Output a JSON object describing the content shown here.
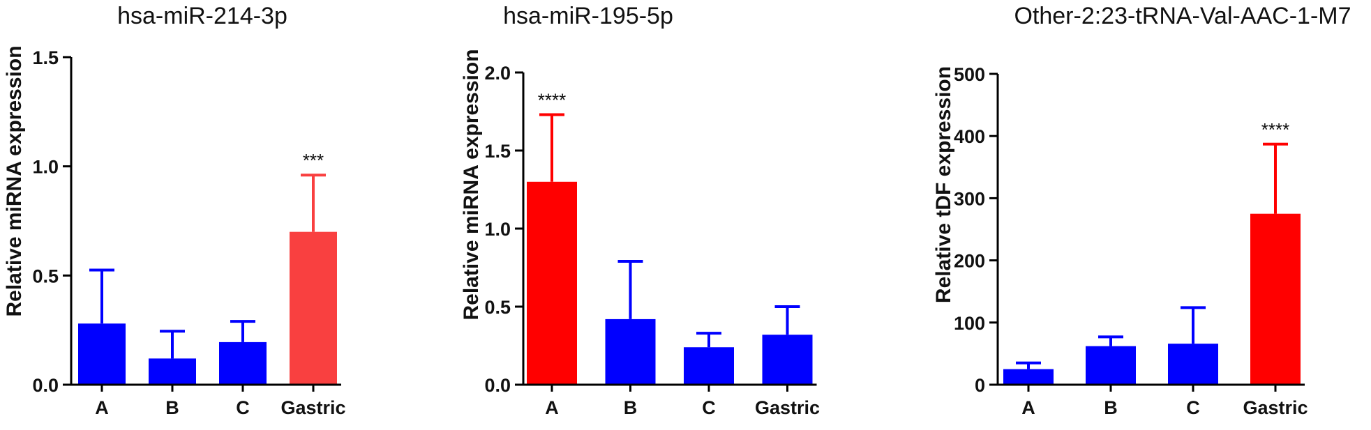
{
  "chart_data": [
    {
      "type": "bar",
      "title": "hsa-miR-214-3p",
      "ylabel": "Relative miRNA expression",
      "xlabel": "",
      "categories": [
        "A",
        "B",
        "C",
        "Gastric"
      ],
      "values": [
        0.28,
        0.12,
        0.195,
        0.7
      ],
      "errors": [
        0.245,
        0.125,
        0.095,
        0.26
      ],
      "colors": [
        "#0000ff",
        "#0000ff",
        "#0000ff",
        "#f94040"
      ],
      "significance": [
        "",
        "",
        "",
        "***"
      ],
      "ylim": [
        0,
        1.5
      ],
      "yticks": [
        "0.0",
        "0.5",
        "1.0",
        "1.5"
      ],
      "ytick_values": [
        0,
        0.5,
        1.0,
        1.5
      ]
    },
    {
      "type": "bar",
      "title": "hsa-miR-195-5p",
      "ylabel": "Relative miRNA expression",
      "xlabel": "",
      "categories": [
        "A",
        "B",
        "C",
        "Gastric"
      ],
      "values": [
        1.3,
        0.42,
        0.24,
        0.32
      ],
      "errors": [
        0.43,
        0.37,
        0.09,
        0.18
      ],
      "colors": [
        "#ff0000",
        "#0000ff",
        "#0000ff",
        "#0000ff"
      ],
      "significance": [
        "****",
        "",
        "",
        ""
      ],
      "ylim": [
        0,
        2.0
      ],
      "yticks": [
        "0.0",
        "0.5",
        "1.0",
        "1.5",
        "2.0"
      ],
      "ytick_values": [
        0,
        0.5,
        1.0,
        1.5,
        2.0
      ]
    },
    {
      "type": "bar",
      "title": "Other-2:23-tRNA-Val-AAC-1-M7",
      "ylabel": "Relative tDF expression",
      "xlabel": "",
      "categories": [
        "A",
        "B",
        "C",
        "Gastric"
      ],
      "values": [
        25,
        62,
        66,
        275
      ],
      "errors": [
        10,
        15,
        58,
        112
      ],
      "colors": [
        "#0000ff",
        "#0000ff",
        "#0000ff",
        "#ff0000"
      ],
      "significance": [
        "",
        "",
        "",
        "****"
      ],
      "ylim": [
        0,
        500
      ],
      "yticks": [
        "0",
        "100",
        "200",
        "300",
        "400",
        "500"
      ],
      "ytick_values": [
        0,
        100,
        200,
        300,
        400,
        500
      ]
    }
  ]
}
